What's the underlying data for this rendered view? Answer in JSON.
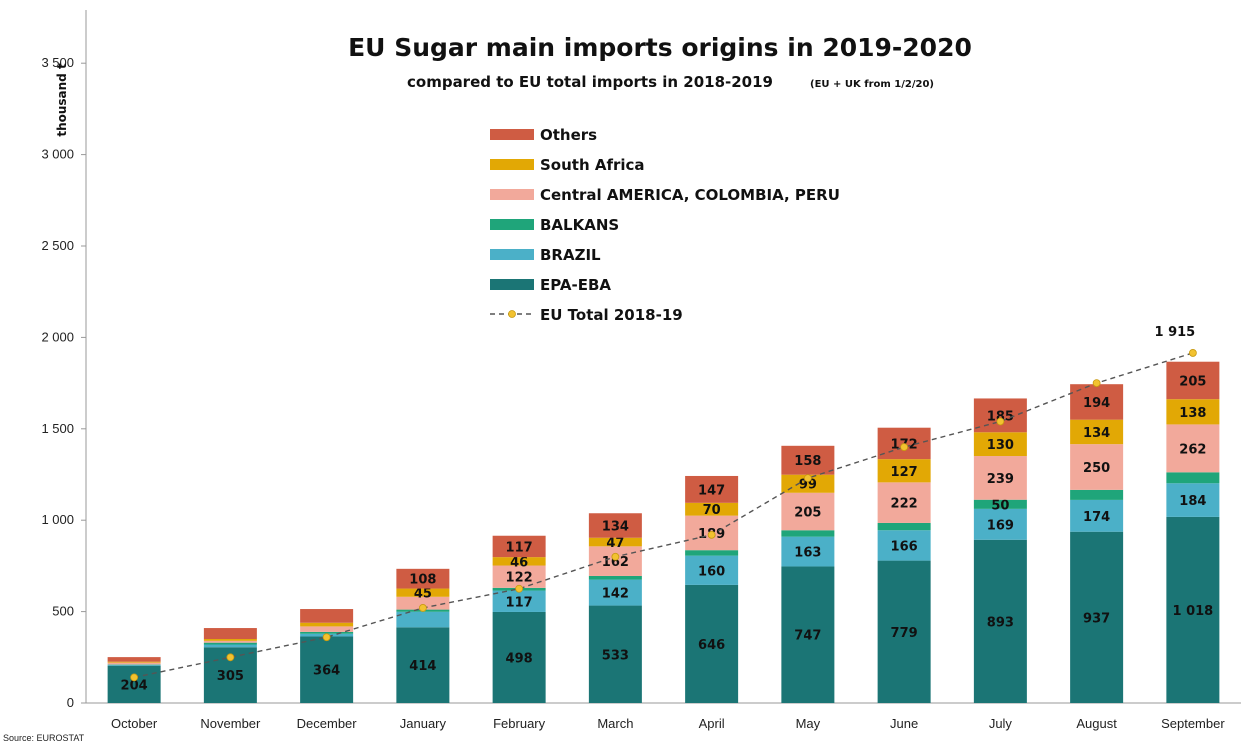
{
  "chart_data": {
    "type": "bar",
    "stacked": true,
    "title": "EU Sugar main imports origins in 2019-2020",
    "subtitle_main": "compared to EU total imports in 2018-2019",
    "subtitle_note": "(EU + UK from 1/2/20)",
    "ylabel": "thousand t",
    "source": "Source: EUROSTAT",
    "ylim": [
      0,
      3700
    ],
    "yticks": [
      0,
      500,
      1000,
      1500,
      2000,
      2500,
      3000,
      3500
    ],
    "ytick_labels": [
      "0",
      "500",
      "1 000",
      "1 500",
      "2 000",
      "2 500",
      "3 000",
      "3 500"
    ],
    "categories": [
      "October",
      "November",
      "December",
      "January",
      "February",
      "March",
      "April",
      "May",
      "June",
      "July",
      "August",
      "September"
    ],
    "series": [
      {
        "name": "EPA-EBA",
        "color": "#1b7575",
        "values": [
          204,
          305,
          364,
          414,
          498,
          533,
          646,
          747,
          779,
          893,
          937,
          1018
        ],
        "labels": [
          "204",
          "305",
          "364",
          "414",
          "498",
          "533",
          "646",
          "747",
          "779",
          "893",
          "937",
          "1 018"
        ]
      },
      {
        "name": "BRAZIL",
        "color": "#4bb0c8",
        "values": [
          5,
          15,
          15,
          85,
          117,
          142,
          160,
          163,
          166,
          169,
          174,
          184
        ],
        "labels": [
          "",
          "",
          "",
          "",
          "117",
          "142",
          "160",
          "163",
          "166",
          "169",
          "174",
          "184"
        ]
      },
      {
        "name": "BALKANS",
        "color": "#1fa57a",
        "values": [
          2,
          10,
          10,
          12,
          15,
          20,
          30,
          35,
          40,
          50,
          55,
          60
        ],
        "labels": [
          "",
          "",
          "",
          "",
          "",
          "",
          "",
          "",
          "",
          "50",
          "",
          ""
        ]
      },
      {
        "name": "Central AMERICA, COLOMBIA, PERU",
        "color": "#f2a99b",
        "values": [
          10,
          10,
          30,
          70,
          122,
          162,
          189,
          205,
          222,
          239,
          250,
          262
        ],
        "labels": [
          "",
          "",
          "",
          "",
          "122",
          "162",
          "189",
          "205",
          "222",
          "239",
          "250",
          "262"
        ]
      },
      {
        "name": "South Africa",
        "color": "#e2a805",
        "values": [
          5,
          10,
          20,
          45,
          46,
          47,
          70,
          99,
          127,
          130,
          134,
          138
        ],
        "labels": [
          "",
          "",
          "",
          "45",
          "46",
          "47",
          "70",
          "99",
          "127",
          "130",
          "134",
          "138"
        ]
      },
      {
        "name": "Others",
        "color": "#cf5c43",
        "values": [
          25,
          60,
          75,
          108,
          117,
          134,
          147,
          158,
          172,
          185,
          194,
          205
        ],
        "labels": [
          "",
          "",
          "",
          "108",
          "117",
          "134",
          "147",
          "158",
          "172",
          "185",
          "194",
          "205"
        ]
      }
    ],
    "line": {
      "name": "EU Total 2018-19",
      "color": "#f2c230",
      "values": [
        140,
        250,
        360,
        520,
        625,
        800,
        920,
        1230,
        1400,
        1540,
        1750,
        1915
      ],
      "end_label": "1 915"
    },
    "legend_order": [
      "Others",
      "South Africa",
      "Central AMERICA, COLOMBIA, PERU",
      "BALKANS",
      "BRAZIL",
      "EPA-EBA",
      "EU Total 2018-19"
    ],
    "legend_position": "upper-center",
    "grid": false
  }
}
